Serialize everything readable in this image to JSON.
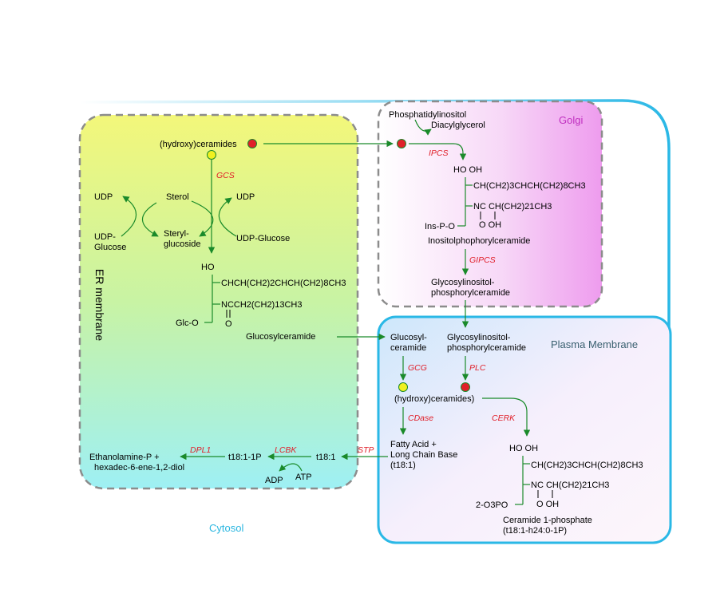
{
  "regions": {
    "golgi": "Golgi",
    "er": "ER membrane",
    "plasma_membrane": "Plasma Membrane",
    "cytosol": "Cytosol"
  },
  "er": {
    "hydroxy_ceramides": "(hydroxy)ceramides",
    "enzyme_gcs": "GCS",
    "udp_left": "UDP",
    "sterol": "Sterol",
    "udp_right": "UDP",
    "udp_glucose_left": [
      "UDP-",
      "Glucose"
    ],
    "steryl_glucoside": [
      "Steryl-",
      "glucoside"
    ],
    "udp_glucose_right": "UDP-Glucose",
    "glucosylceramide_structure": {
      "ho": "HO",
      "chain": "CHCH(CH2)2CHCH(CH2)8CH3",
      "nc": "NCCH2(CH2)13CH3",
      "glc_o": "Glc-O",
      "o": "O"
    },
    "glucosylceramide": "Glucosylceramide"
  },
  "golgi": {
    "phosphatidylinositol": "Phosphatidylinositol",
    "diacylglycerol": "Diacylglycerol",
    "enzyme_ipcs": "IPCS",
    "structure": {
      "ho_oh": "HO  OH",
      "chain": "CH(CH2)3CHCH(CH2)8CH3",
      "nc": "NC CH(CH2)21CH3",
      "ins_p_o": "Ins-P-O",
      "o_oh": "O OH"
    },
    "inositolphosphorylceramide": "Inositolphophorylceramide",
    "enzyme_gipcs": "GIPCS",
    "glycosylinositol_phos": [
      "Glycosylinositol-",
      "phosphorylceramide"
    ]
  },
  "pm": {
    "glucosyl_ceramide": [
      "Glucosyl-",
      "ceramide"
    ],
    "glycosylinositol_phos": [
      "Glycosylinositol-",
      "phosphorylceramide"
    ],
    "enzyme_gcg": "GCG",
    "enzyme_plc": "PLC",
    "hydroxy_ceramides": "(hydroxy)ceramides)",
    "enzyme_cdase": "CDase",
    "enzyme_cerk": "CERK",
    "fatty_acid": [
      "Fatty Acid +",
      "Long Chain Base",
      "(t18:1)"
    ],
    "structure": {
      "ho_oh": "HO  OH",
      "chain": "CH(CH2)3CHCH(CH2)8CH3",
      "nc": "NC CH(CH2)21CH3",
      "o3po": "2-O3PO",
      "o_oh": "O OH"
    },
    "ceramide_1_phosphate": [
      "Ceramide 1-phosphate",
      "(t18:1-h24:0-1P)"
    ]
  },
  "cytosol": {
    "enzyme_stp": "STP",
    "t18_1": "t18:1",
    "enzyme_lcbk": "LCBK",
    "t18_1_1p": "t18:1-1P",
    "adp": "ADP",
    "atp": "ATP",
    "enzyme_dpl1": "DPL1",
    "products": [
      "Ethanolamine-P +",
      "hexadec-6-ene-1,2-diol"
    ]
  },
  "colors": {
    "arrow": "#1a8a2a",
    "enzyme": "#e0202a",
    "golgi_label": "#c030c0",
    "pm_label": "#3a6070",
    "cytosol_label": "#2ab6e0",
    "pm_border": "#2ab8e6",
    "dashed_border": "#8c8c8c",
    "marker_red": "#e0202a",
    "marker_yellow": "#f0f020"
  }
}
